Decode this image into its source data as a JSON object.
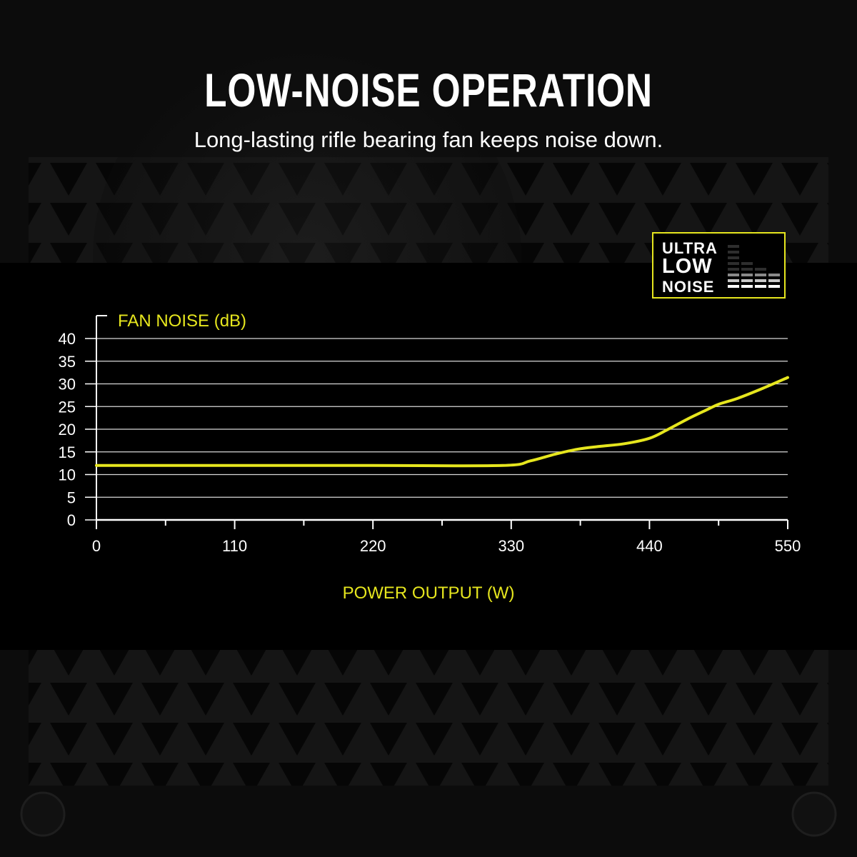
{
  "header": {
    "title": "LOW-NOISE OPERATION",
    "subtitle": "Long-lasting rifle bearing fan keeps noise down."
  },
  "badge": {
    "line1": "ULTRA",
    "line2": "LOW",
    "line3": "NOISE"
  },
  "colors": {
    "accent": "#e6e61e",
    "background": "#000000",
    "text": "#ffffff"
  },
  "chart_data": {
    "type": "line",
    "title": "",
    "ylabel": "FAN NOISE (dB)",
    "xlabel": "POWER OUTPUT (W)",
    "xlim": [
      0,
      550
    ],
    "ylim": [
      0,
      40
    ],
    "x_ticks": [
      0,
      110,
      220,
      330,
      440,
      550
    ],
    "y_ticks": [
      0,
      5,
      10,
      15,
      20,
      25,
      30,
      35,
      40
    ],
    "grid": true,
    "series": [
      {
        "color": "#e6e61e",
        "x": [
          0,
          110,
          220,
          323,
          345,
          365,
          383,
          400,
          420,
          440,
          455,
          470,
          485,
          495,
          510,
          530,
          550
        ],
        "y": [
          12,
          12,
          12,
          12,
          13,
          14.5,
          15.6,
          16.2,
          16.8,
          18,
          20,
          22.2,
          24.2,
          25.5,
          26.8,
          29,
          31.4
        ]
      }
    ]
  }
}
